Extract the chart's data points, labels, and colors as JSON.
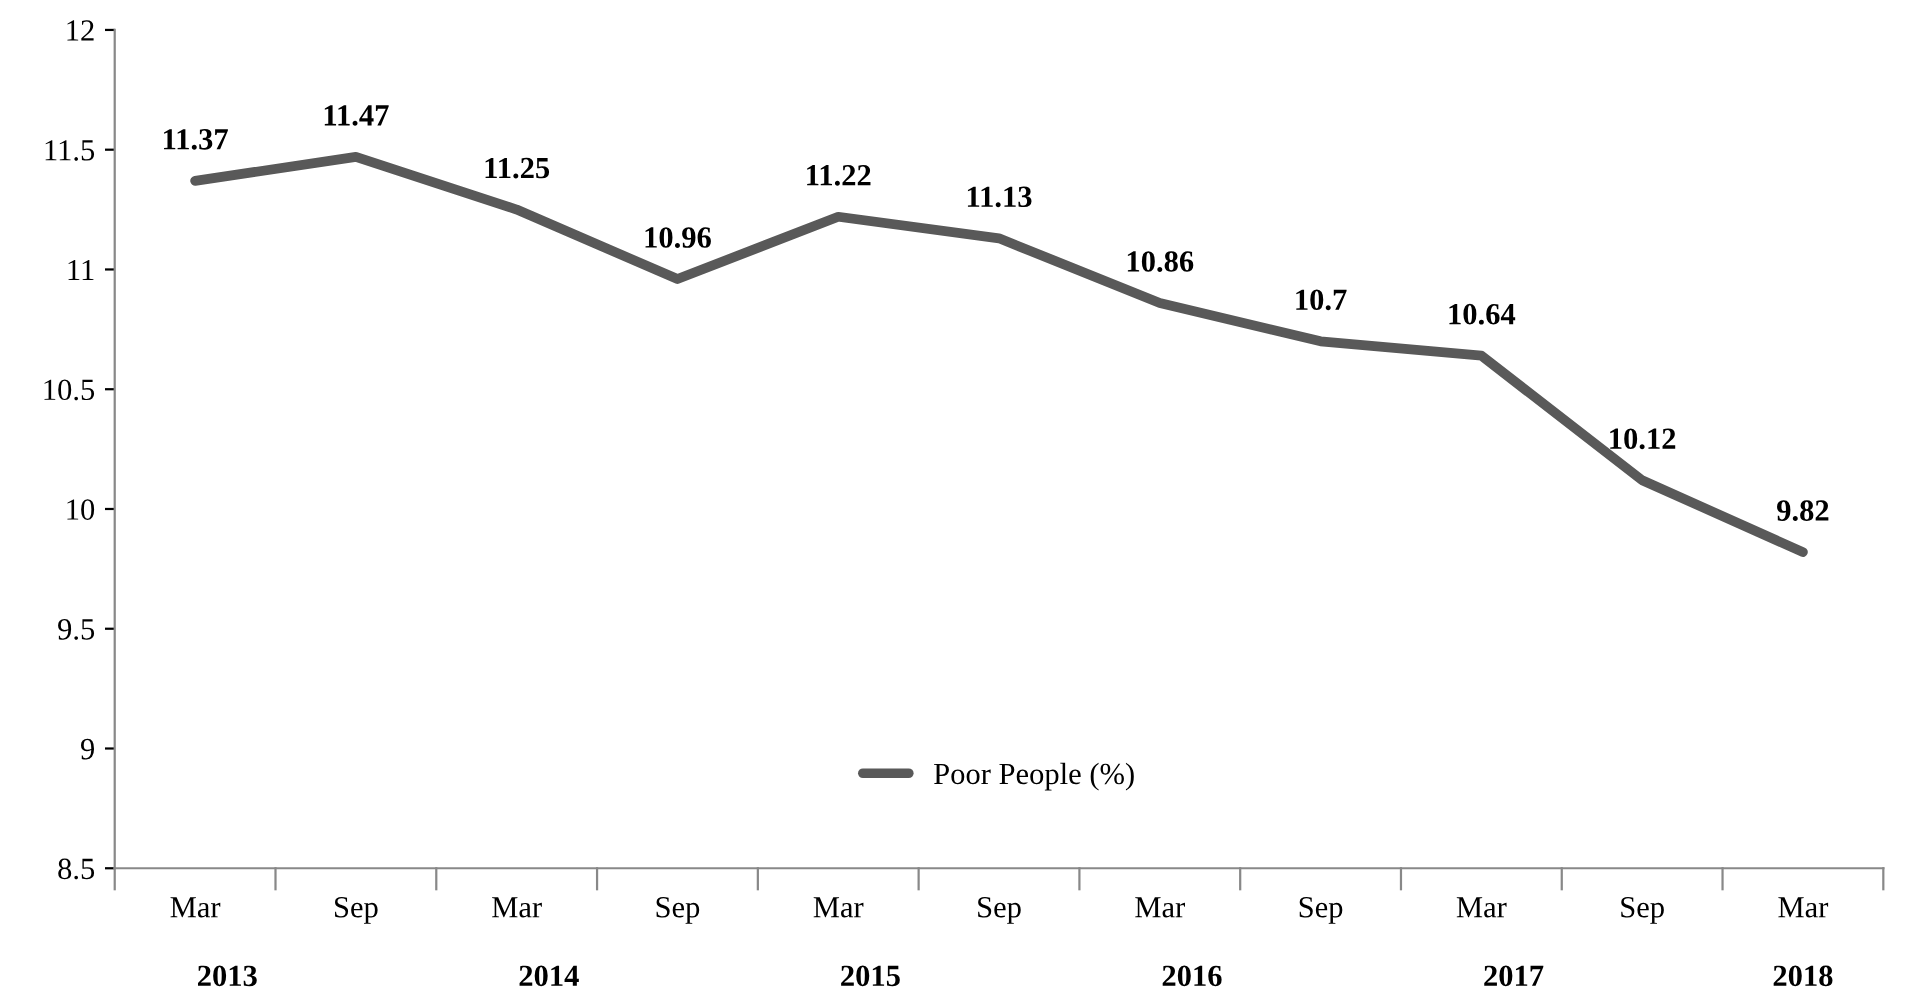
{
  "chart_data": {
    "type": "line",
    "categories": [
      "Mar",
      "Sep",
      "Mar",
      "Sep",
      "Mar",
      "Sep",
      "Mar",
      "Sep",
      "Mar",
      "Sep",
      "Mar"
    ],
    "series": [
      {
        "name": "Poor People (%)",
        "color": "#595959",
        "values": [
          11.37,
          11.47,
          11.25,
          10.96,
          11.22,
          11.13,
          10.86,
          10.7,
          10.64,
          10.12,
          9.82
        ]
      }
    ],
    "ylim": [
      8.5,
      12
    ],
    "yticks": [
      8.5,
      9,
      9.5,
      10,
      10.5,
      11,
      11.5,
      12
    ],
    "data_labels": true,
    "legend": "bottom",
    "grid": false,
    "marker": "none",
    "line_style": "solid",
    "annotations": [
      "2013",
      "2014",
      "2015",
      "2016",
      "2017",
      "2018"
    ]
  }
}
